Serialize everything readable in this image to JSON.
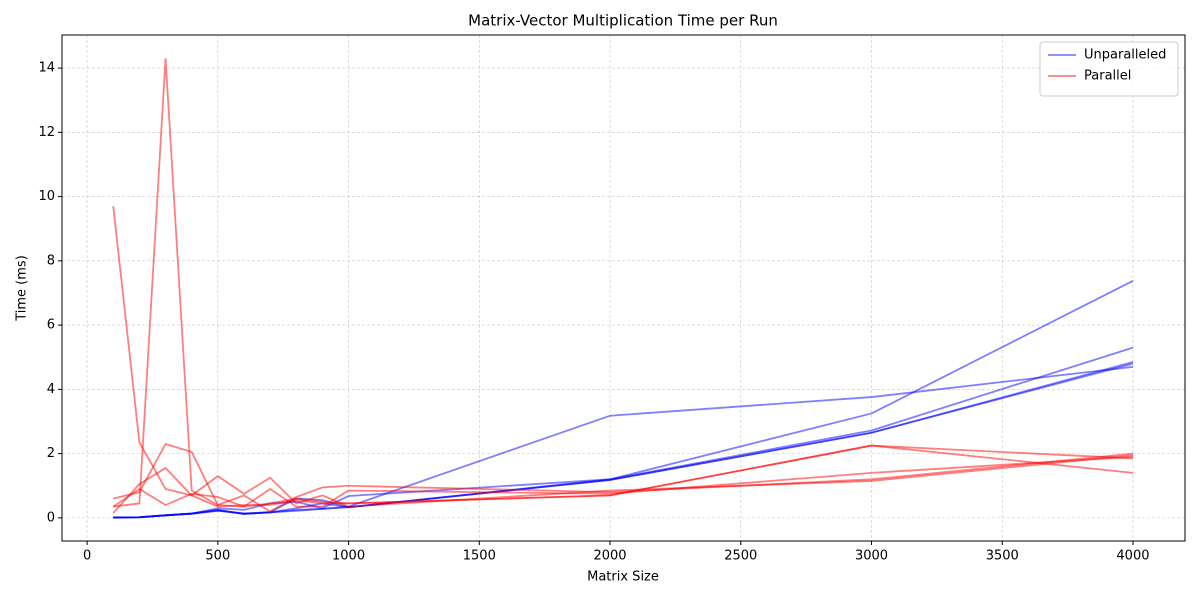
{
  "chart_data": {
    "type": "line",
    "title": "Matrix-Vector Multiplication Time per Run",
    "x_label": "Matrix Size",
    "y_label": "Time (ms)",
    "x": [
      100,
      200,
      300,
      400,
      500,
      600,
      700,
      800,
      900,
      1000,
      2000,
      3000,
      4000
    ],
    "series": [
      {
        "name": "Unparalleled",
        "color": "#0000ff",
        "alpha": 0.5,
        "values": [
          [
            0.01,
            0.02,
            0.08,
            0.13,
            0.25,
            0.12,
            0.17,
            0.25,
            0.28,
            0.35,
            3.18,
            3.76,
            4.7
          ],
          [
            0.01,
            0.02,
            0.08,
            0.13,
            0.3,
            0.25,
            0.45,
            0.5,
            0.3,
            0.68,
            1.2,
            3.25,
            7.38
          ],
          [
            0.01,
            0.02,
            0.08,
            0.13,
            0.22,
            0.14,
            0.17,
            0.3,
            0.45,
            0.33,
            1.2,
            2.72,
            5.3
          ],
          [
            0.01,
            0.02,
            0.08,
            0.14,
            0.24,
            0.12,
            0.17,
            0.22,
            0.28,
            0.33,
            1.18,
            2.65,
            4.85
          ],
          [
            0.01,
            0.02,
            0.08,
            0.13,
            0.23,
            0.13,
            0.18,
            0.6,
            0.55,
            0.33,
            1.18,
            2.65,
            4.8
          ]
        ]
      },
      {
        "name": "Parallel",
        "color": "#ff0000",
        "alpha": 0.5,
        "values": [
          [
            9.7,
            2.35,
            0.9,
            0.7,
            0.35,
            0.4,
            0.4,
            0.55,
            0.45,
            0.45,
            0.7,
            2.25,
            1.85
          ],
          [
            0.35,
            0.45,
            14.3,
            0.85,
            0.4,
            0.35,
            0.45,
            0.6,
            0.5,
            0.45,
            0.7,
            2.25,
            1.4
          ],
          [
            0.6,
            0.8,
            2.3,
            2.05,
            0.4,
            0.7,
            0.2,
            0.65,
            0.95,
            1.0,
            0.8,
            1.2,
            2.0
          ],
          [
            0.15,
            1.05,
            1.55,
            0.7,
            1.3,
            0.75,
            1.25,
            0.45,
            0.7,
            0.35,
            0.85,
            1.15,
            1.95
          ],
          [
            0.35,
            0.9,
            0.4,
            0.75,
            0.65,
            0.35,
            0.9,
            0.35,
            0.35,
            0.85,
            0.75,
            1.4,
            1.9
          ]
        ]
      }
    ],
    "xlim": [
      -96,
      4199
    ],
    "ylim": [
      -0.72,
      15.03
    ],
    "xticks": [
      0,
      500,
      1000,
      1500,
      2000,
      2500,
      3000,
      3500,
      4000
    ],
    "yticks": [
      0,
      2,
      4,
      6,
      8,
      10,
      12,
      14
    ],
    "grid": true,
    "legend": "upper right"
  }
}
